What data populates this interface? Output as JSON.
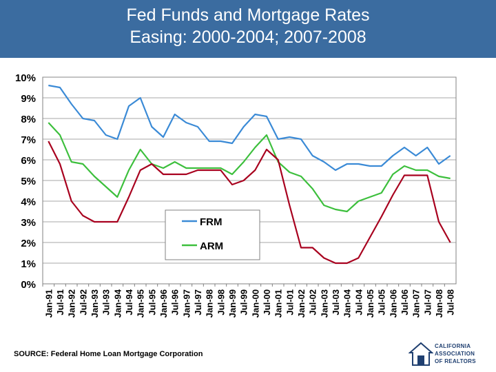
{
  "header": {
    "title_line1": "Fed Funds and Mortgage Rates",
    "title_line2": "Easing: 2000-2004; 2007-2008"
  },
  "footer": {
    "source": "SOURCE: Federal Home Loan Mortgage Corporation",
    "logo_line1": "CALIFORNIA",
    "logo_line2": "ASSOCIATION",
    "logo_line3": "OF REALTORS"
  },
  "colors": {
    "title_bar": "#3B6CA0",
    "frm": "#3A8AD6",
    "arm": "#3CBF3C",
    "fed_funds": "#A8001E"
  },
  "chart_data": {
    "type": "line",
    "title": "",
    "xlabel": "",
    "ylabel": "",
    "ylim": [
      0,
      10
    ],
    "y_ticks": [
      "0%",
      "1%",
      "2%",
      "3%",
      "4%",
      "5%",
      "6%",
      "7%",
      "8%",
      "9%",
      "10%"
    ],
    "x_categories": [
      "Jan-91",
      "Jul-91",
      "Jan-92",
      "Jul-92",
      "Jan-93",
      "Jul-93",
      "Jan-94",
      "Jul-94",
      "Jan-95",
      "Jul-95",
      "Jan-96",
      "Jul-96",
      "Jan-97",
      "Jul-97",
      "Jan-98",
      "Jul-98",
      "Jan-99",
      "Jul-99",
      "Jan-00",
      "Jul-00",
      "Jan-01",
      "Jul-01",
      "Jan-02",
      "Jul-02",
      "Jan-03",
      "Jul-03",
      "Jan-04",
      "Jul-04",
      "Jan-05",
      "Jul-05",
      "Jan-06",
      "Jul-06",
      "Jan-07",
      "Jul-07",
      "Jan-08",
      "Jul-08"
    ],
    "grid": true,
    "legend_position": "center",
    "series": [
      {
        "name": "FRM",
        "color": "#3A8AD6",
        "legend": true,
        "values": [
          9.6,
          9.5,
          8.7,
          8.0,
          7.9,
          7.2,
          7.0,
          8.6,
          9.0,
          7.6,
          7.1,
          8.2,
          7.8,
          7.6,
          6.9,
          6.9,
          6.8,
          7.6,
          8.2,
          8.1,
          7.0,
          7.1,
          7.0,
          6.2,
          5.9,
          5.5,
          5.8,
          5.8,
          5.7,
          5.7,
          6.2,
          6.6,
          6.2,
          6.6,
          5.8,
          6.2
        ]
      },
      {
        "name": "ARM",
        "color": "#3CBF3C",
        "legend": true,
        "values": [
          7.8,
          7.2,
          5.9,
          5.8,
          5.2,
          4.7,
          4.2,
          5.5,
          6.5,
          5.8,
          5.6,
          5.9,
          5.6,
          5.6,
          5.6,
          5.6,
          5.3,
          5.9,
          6.6,
          7.2,
          5.9,
          5.4,
          5.2,
          4.6,
          3.8,
          3.6,
          3.5,
          4.0,
          4.2,
          4.4,
          5.3,
          5.7,
          5.5,
          5.5,
          5.2,
          5.1
        ]
      },
      {
        "name": "Fed Funds",
        "color": "#A8001E",
        "legend": false,
        "values": [
          6.9,
          5.8,
          4.0,
          3.3,
          3.0,
          3.0,
          3.0,
          4.2,
          5.5,
          5.8,
          5.3,
          5.3,
          5.3,
          5.5,
          5.5,
          5.5,
          4.8,
          5.0,
          5.5,
          6.5,
          6.0,
          3.8,
          1.75,
          1.75,
          1.25,
          1.0,
          1.0,
          1.25,
          2.25,
          3.25,
          4.3,
          5.25,
          5.25,
          5.25,
          3.0,
          2.0
        ]
      }
    ]
  }
}
